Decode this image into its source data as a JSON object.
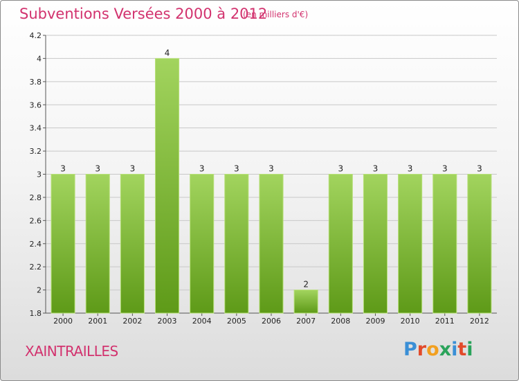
{
  "header": {
    "title": "Subventions Versées 2000 à 2012",
    "unit_note": "(en milliers d'€)"
  },
  "commune": "XAINTRAILLES",
  "logo": {
    "text": "Proxiti",
    "letter_colors": [
      "#3a8fd6",
      "#e24a2a",
      "#f2a020",
      "#2aa35a",
      "#3a8fd6",
      "#e24a2a",
      "#2aa35a"
    ]
  },
  "colors": {
    "title": "#d2326e",
    "bar_top": "#a2d45e",
    "bar_bottom": "#5e9a18",
    "grid": "#c8c8c8"
  },
  "chart_data": {
    "type": "bar",
    "title": "Subventions Versées 2000 à 2012",
    "xlabel": "",
    "ylabel": "",
    "categories": [
      "2000",
      "2001",
      "2002",
      "2003",
      "2004",
      "2005",
      "2006",
      "2007",
      "2008",
      "2009",
      "2010",
      "2011",
      "2012"
    ],
    "values": [
      3,
      3,
      3,
      4,
      3,
      3,
      3,
      2,
      3,
      3,
      3,
      3,
      3
    ],
    "data_labels": [
      "3",
      "3",
      "3",
      "4",
      "3",
      "3",
      "3",
      "2",
      "3",
      "3",
      "3",
      "3",
      "3"
    ],
    "ylim": [
      1.8,
      4.2
    ],
    "yticks": [
      "1.8",
      "2",
      "2.2",
      "2.4",
      "2.6",
      "2.8",
      "3",
      "3.2",
      "3.4",
      "3.6",
      "3.8",
      "4",
      "4.2"
    ],
    "ytick_values": [
      1.8,
      2,
      2.2,
      2.4,
      2.6,
      2.8,
      3,
      3.2,
      3.4,
      3.6,
      3.8,
      4,
      4.2
    ],
    "grid": true,
    "legend": "none"
  }
}
